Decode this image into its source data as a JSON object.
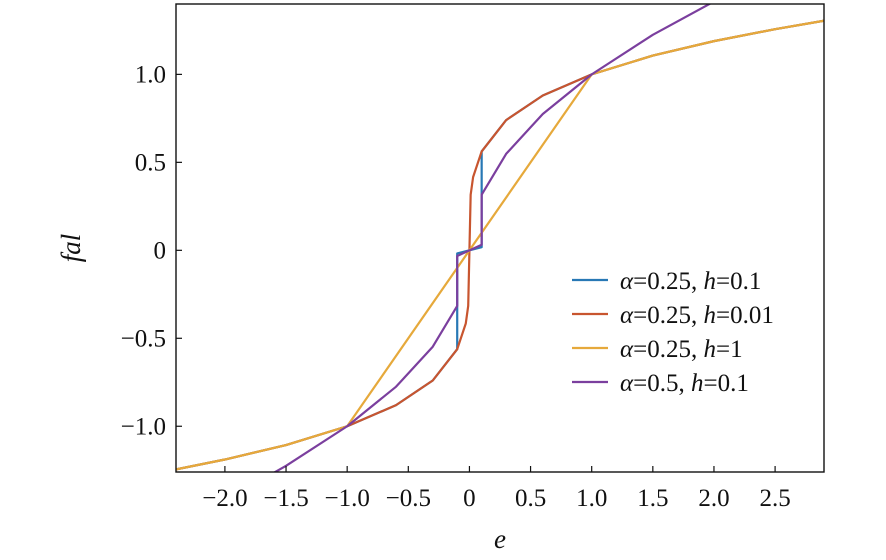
{
  "chart_data": {
    "type": "line",
    "title": "",
    "xlabel": "e",
    "ylabel": "fal",
    "xlim": [
      -2.4,
      2.9
    ],
    "ylim": [
      -1.26,
      1.4
    ],
    "xticks": [
      -2.0,
      -1.5,
      -1.0,
      -0.5,
      0,
      0.5,
      1.0,
      1.5,
      2.0,
      2.5
    ],
    "xtick_labels": [
      "−2.0",
      "−1.5",
      "−1.0",
      "−0.5",
      "0",
      "0.5",
      "1.0",
      "1.5",
      "2.0",
      "2.5"
    ],
    "yticks": [
      1.0,
      0.5,
      0,
      -0.5,
      -1.0
    ],
    "ytick_labels": [
      "1.0",
      "0.5",
      "0",
      "−0.5",
      "−1.0"
    ],
    "grid": false,
    "legend_position": "lower-right",
    "series": [
      {
        "name_parts": [
          "α",
          "=0.25, ",
          "h",
          "=0.1"
        ],
        "color": "#2878b5",
        "x": [
          -2.4,
          -2.0,
          -1.5,
          -1.0,
          -0.6,
          -0.3,
          -0.1,
          -0.1,
          0,
          0.1,
          0.1,
          0.3,
          0.6,
          1.0,
          1.5,
          2.0,
          2.5,
          2.9
        ],
        "y": [
          -1.245,
          -1.189,
          -1.107,
          -1.0,
          -0.88,
          -0.74,
          -0.562,
          -0.018,
          0,
          0.018,
          0.562,
          0.74,
          0.88,
          1.0,
          1.107,
          1.189,
          1.257,
          1.305
        ]
      },
      {
        "name_parts": [
          "α",
          "=0.25, ",
          "h",
          "=0.01"
        ],
        "color": "#c8552f",
        "x": [
          -2.4,
          -2.0,
          -1.5,
          -1.0,
          -0.6,
          -0.3,
          -0.1,
          -0.03,
          -0.01,
          0,
          0.01,
          0.03,
          0.1,
          0.3,
          0.6,
          1.0,
          1.5,
          2.0,
          2.5,
          2.9
        ],
        "y": [
          -1.245,
          -1.189,
          -1.107,
          -1.0,
          -0.88,
          -0.74,
          -0.562,
          -0.416,
          -0.316,
          0,
          0.316,
          0.416,
          0.562,
          0.74,
          0.88,
          1.0,
          1.107,
          1.189,
          1.257,
          1.305
        ]
      },
      {
        "name_parts": [
          "α",
          "=0.25, ",
          "h",
          "=1"
        ],
        "color": "#e6a93b",
        "x": [
          -2.4,
          -2.0,
          -1.5,
          -1.0,
          1.0,
          1.5,
          2.0,
          2.5,
          2.9
        ],
        "y": [
          -1.245,
          -1.189,
          -1.107,
          -1.0,
          1.0,
          1.107,
          1.189,
          1.257,
          1.305
        ]
      },
      {
        "name_parts": [
          "α",
          "=0.5, ",
          "h",
          "=0.1"
        ],
        "color": "#7b3f9e",
        "x": [
          -1.67,
          -1.5,
          -1.0,
          -0.6,
          -0.3,
          -0.1,
          -0.1,
          0,
          0.1,
          0.1,
          0.3,
          0.6,
          1.0,
          1.5,
          2.0
        ],
        "y": [
          -1.292,
          -1.225,
          -1.0,
          -0.775,
          -0.548,
          -0.316,
          -0.032,
          0,
          0.032,
          0.316,
          0.548,
          0.775,
          1.0,
          1.225,
          1.414
        ]
      }
    ]
  }
}
